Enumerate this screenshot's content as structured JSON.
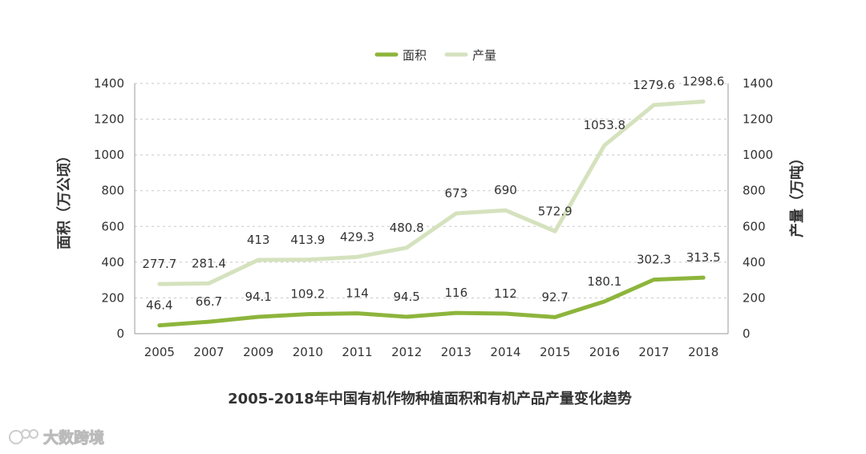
{
  "chart_data": {
    "type": "line",
    "title": "2005-2018年中国有机作物种植面积和有机产品产量变化趋势",
    "categories": [
      "2005",
      "2007",
      "2009",
      "2010",
      "2011",
      "2012",
      "2013",
      "2014",
      "2015",
      "2016",
      "2017",
      "2018"
    ],
    "series": [
      {
        "name": "面积",
        "axis": "left",
        "color": "#8db53c",
        "values": [
          46.4,
          66.7,
          94.1,
          109.2,
          114,
          94.5,
          116,
          112,
          92.7,
          180.1,
          302.3,
          313.5
        ],
        "labels": [
          "46.4",
          "66.7",
          "94.1",
          "109.2",
          "114",
          "94.5",
          "116",
          "112",
          "92.7",
          "180.1",
          "302.3",
          "313.5"
        ]
      },
      {
        "name": "产量",
        "axis": "right",
        "color": "#d5e2be",
        "values": [
          277.7,
          281.4,
          413,
          413.9,
          429.3,
          480.8,
          673,
          690,
          572.9,
          1053.8,
          1279.6,
          1298.6
        ],
        "labels": [
          "277.7",
          "281.4",
          "413",
          "413.9",
          "429.3",
          "480.8",
          "673",
          "690",
          "572.9",
          "1053.8",
          "1279.6",
          "1298.6"
        ]
      }
    ],
    "ylabel_left": "面积（万公顷）",
    "ylabel_right": "产量（万吨）",
    "ylim_left": [
      0,
      1400
    ],
    "ylim_right": [
      0,
      1400
    ],
    "yticks": [
      "0",
      "200",
      "400",
      "600",
      "800",
      "1000",
      "1200",
      "1400"
    ],
    "grid": true,
    "legend": "top-center"
  },
  "watermark": {
    "text": "大数跨境"
  }
}
